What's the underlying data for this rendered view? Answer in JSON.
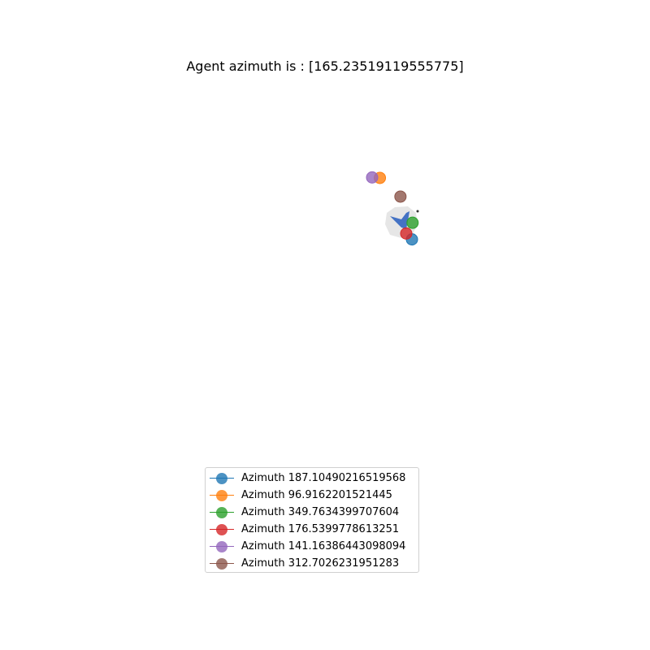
{
  "chart_data": {
    "type": "scatter",
    "title": "Agent azimuth is : [165.23519119555775]",
    "xlabel": "",
    "ylabel": "",
    "grid": false,
    "axes_visible": false,
    "legend_position": "lower-center",
    "agent": {
      "azimuth": 165.23519119555775,
      "icon": "bird-icon",
      "color": "#4472c4"
    },
    "series": [
      {
        "name": "Azimuth 187.10490216519568",
        "color": "#1f77b4",
        "x": 1.13,
        "y": -1.88
      },
      {
        "name": "Azimuth 96.9162201521445",
        "color": "#ff7f0e",
        "x": -2.3,
        "y": 4.7
      },
      {
        "name": "Azimuth 349.7634399707604",
        "color": "#2ca02c",
        "x": 1.2,
        "y": -0.1
      },
      {
        "name": "Azimuth 176.5399778613251",
        "color": "#d62728",
        "x": 0.52,
        "y": -1.25
      },
      {
        "name": "Azimuth 141.16386443098094",
        "color": "#9467bd",
        "x": -3.13,
        "y": 4.75
      },
      {
        "name": "Azimuth 312.7026231951283",
        "color": "#8c564b",
        "x": -0.1,
        "y": 2.7
      }
    ]
  }
}
